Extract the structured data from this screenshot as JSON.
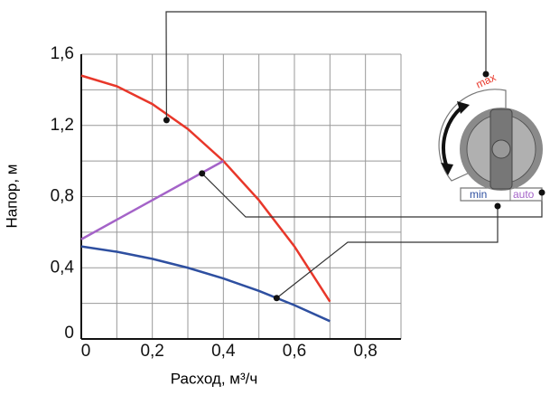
{
  "chart_data": {
    "type": "line",
    "x_label": "Расход, м³/ч",
    "y_label": "Напор, м",
    "xlim": [
      0,
      0.9
    ],
    "ylim": [
      0,
      1.6
    ],
    "xticks": [
      {
        "value": 0,
        "label": "0"
      },
      {
        "value": 0.2,
        "label": "0,2"
      },
      {
        "value": 0.4,
        "label": "0,4"
      },
      {
        "value": 0.6,
        "label": "0,6"
      },
      {
        "value": 0.8,
        "label": "0,8"
      }
    ],
    "yticks": [
      {
        "value": 0,
        "label": "0"
      },
      {
        "value": 0.4,
        "label": "0,4"
      },
      {
        "value": 0.8,
        "label": "0,8"
      },
      {
        "value": 1.2,
        "label": "1,2"
      },
      {
        "value": 1.6,
        "label": "1,6"
      }
    ],
    "x_minor_ticks": [
      0.1,
      0.3,
      0.5,
      0.7,
      0.9
    ],
    "y_minor_ticks": [
      0.2,
      0.6,
      1.0,
      1.4
    ],
    "grid": true,
    "series": [
      {
        "name": "max",
        "color": "#e8372a",
        "x": [
          0,
          0.1,
          0.2,
          0.3,
          0.4,
          0.5,
          0.6,
          0.7
        ],
        "values": [
          1.48,
          1.42,
          1.32,
          1.18,
          1.0,
          0.78,
          0.52,
          0.21
        ]
      },
      {
        "name": "auto",
        "color": "#a463c8",
        "x": [
          0,
          0.4
        ],
        "values": [
          0.56,
          1.0
        ]
      },
      {
        "name": "min",
        "color": "#2e4fa0",
        "x": [
          0,
          0.1,
          0.2,
          0.3,
          0.4,
          0.5,
          0.6,
          0.7
        ],
        "values": [
          0.52,
          0.49,
          0.45,
          0.4,
          0.34,
          0.27,
          0.19,
          0.1
        ]
      }
    ],
    "markers": [
      {
        "x": 0.24,
        "y": 1.23
      },
      {
        "x": 0.34,
        "y": 0.93
      },
      {
        "x": 0.55,
        "y": 0.23
      }
    ]
  }
}
